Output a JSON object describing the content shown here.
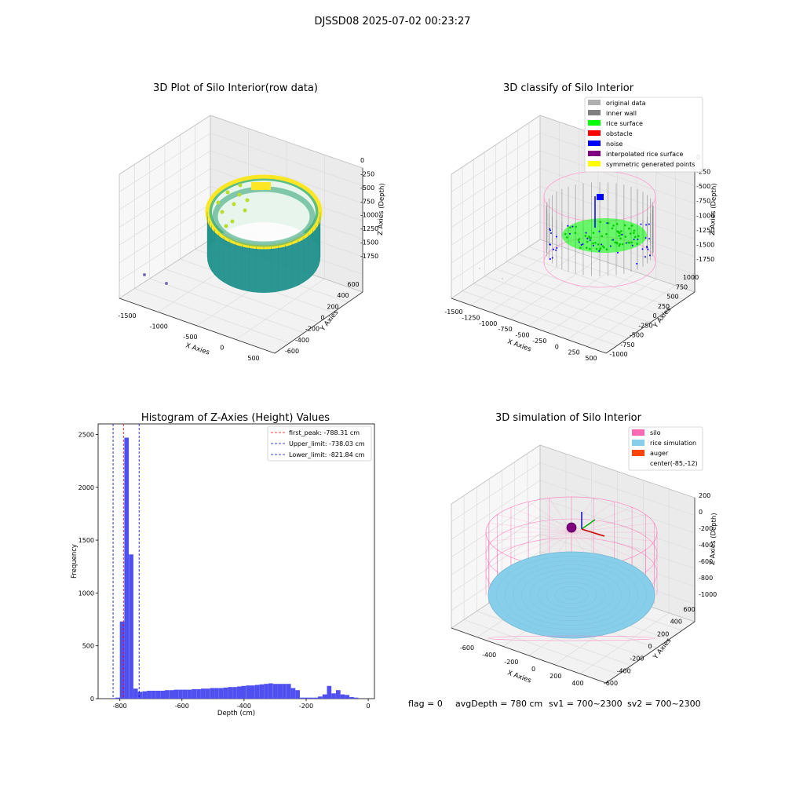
{
  "figure": {
    "title": "DJSSD08 2025-07-02 00:23:27",
    "footer": {
      "flag": "flag = 0",
      "avg_depth": "avgDepth = 780 cm",
      "sv1": "sv1 = 700~2300",
      "sv2": "sv2 = 700~2300"
    }
  },
  "panels": {
    "raw": {
      "title": "3D Plot of Silo Interior(row data)",
      "xlabel": "X Axies",
      "ylabel": "Y Axies",
      "zlabel": "Z Axies (Depth)",
      "x_ticks": [
        "-1500",
        "-1000",
        "-500",
        "0",
        "500"
      ],
      "y_ticks": [
        "-600",
        "-400",
        "-200",
        "0",
        "200",
        "400",
        "600"
      ],
      "z_ticks": [
        "0",
        "-250",
        "-500",
        "-750",
        "-1000",
        "-1250",
        "-1500",
        "-1750"
      ],
      "colors": {
        "low": "#21918c",
        "high": "#fde725",
        "outlier": "#7b6fb5"
      }
    },
    "classify": {
      "title": "3D classify of Silo Interior",
      "xlabel": "X Axies",
      "ylabel": "Y Axies",
      "zlabel": "Z Axies (Depth)",
      "x_ticks": [
        "-1500",
        "-1250",
        "-1000",
        "-750",
        "-500",
        "-250",
        "0",
        "250",
        "500"
      ],
      "y_ticks": [
        "-1000",
        "-750",
        "-500",
        "-250",
        "0",
        "250",
        "500",
        "750",
        "1000"
      ],
      "z_ticks": [
        "0",
        "-250",
        "-500",
        "-750",
        "-1000",
        "-1250",
        "-1500",
        "-1750"
      ],
      "legend": [
        {
          "label": "original data",
          "color": "#b0b0b0"
        },
        {
          "label": "inner wall",
          "color": "#808080"
        },
        {
          "label": "rice surface",
          "color": "#00ff00"
        },
        {
          "label": "obstacle",
          "color": "#ff0000"
        },
        {
          "label": "noise",
          "color": "#0000ff"
        },
        {
          "label": "interpolated rice surface",
          "color": "#800080"
        },
        {
          "label": "symmetric generated points",
          "color": "#ffff00"
        }
      ]
    },
    "simulation": {
      "title": "3D simulation of Silo Interior",
      "xlabel": "X Axies",
      "ylabel": "Y Axies",
      "zlabel": "Z Axies (Depth)",
      "x_ticks": [
        "-600",
        "-400",
        "-200",
        "0",
        "200",
        "400"
      ],
      "y_ticks": [
        "-600",
        "-400",
        "-200",
        "0",
        "200",
        "400",
        "600"
      ],
      "z_ticks": [
        "200",
        "0",
        "-200",
        "-400",
        "-600",
        "-800",
        "-1000"
      ],
      "legend": [
        {
          "label": "silo",
          "color": "#ff69b4"
        },
        {
          "label": "rice simulation",
          "color": "#87ceeb"
        },
        {
          "label": "auger",
          "color": "#ff4500"
        },
        {
          "label": "center(-85,-12)",
          "color": ""
        }
      ]
    }
  },
  "chart_data": {
    "type": "bar",
    "title": "Histogram of Z-Axies (Height) Values",
    "xlabel": "Depth (cm)",
    "ylabel": "Frequency",
    "xlim": [
      -870,
      20
    ],
    "ylim": [
      0,
      2600
    ],
    "x_ticks": [
      -800,
      -600,
      -400,
      -200,
      0
    ],
    "y_ticks": [
      0,
      500,
      1000,
      1500,
      2000,
      2500
    ],
    "bar_width": 14.5,
    "bar_color": "#5050f0",
    "bins": [
      {
        "x": -829,
        "value": 5
      },
      {
        "x": -814.5,
        "value": 10
      },
      {
        "x": -800,
        "value": 730
      },
      {
        "x": -785.5,
        "value": 2470
      },
      {
        "x": -771,
        "value": 1365
      },
      {
        "x": -756.5,
        "value": 95
      },
      {
        "x": -742,
        "value": 65
      },
      {
        "x": -727.5,
        "value": 70
      },
      {
        "x": -713,
        "value": 75
      },
      {
        "x": -698.5,
        "value": 75
      },
      {
        "x": -684,
        "value": 75
      },
      {
        "x": -669.5,
        "value": 75
      },
      {
        "x": -655,
        "value": 80
      },
      {
        "x": -640.5,
        "value": 80
      },
      {
        "x": -626,
        "value": 85
      },
      {
        "x": -611.5,
        "value": 85
      },
      {
        "x": -597,
        "value": 85
      },
      {
        "x": -582.5,
        "value": 85
      },
      {
        "x": -568,
        "value": 90
      },
      {
        "x": -553.5,
        "value": 90
      },
      {
        "x": -539,
        "value": 95
      },
      {
        "x": -524.5,
        "value": 95
      },
      {
        "x": -510,
        "value": 100
      },
      {
        "x": -495.5,
        "value": 100
      },
      {
        "x": -481,
        "value": 100
      },
      {
        "x": -466.5,
        "value": 105
      },
      {
        "x": -452,
        "value": 110
      },
      {
        "x": -437.5,
        "value": 110
      },
      {
        "x": -423,
        "value": 115
      },
      {
        "x": -408.5,
        "value": 120
      },
      {
        "x": -394,
        "value": 125
      },
      {
        "x": -379.5,
        "value": 125
      },
      {
        "x": -365,
        "value": 130
      },
      {
        "x": -350.5,
        "value": 135
      },
      {
        "x": -336,
        "value": 140
      },
      {
        "x": -321.5,
        "value": 145
      },
      {
        "x": -307,
        "value": 140
      },
      {
        "x": -292.5,
        "value": 140
      },
      {
        "x": -278,
        "value": 140
      },
      {
        "x": -263.5,
        "value": 140
      },
      {
        "x": -249,
        "value": 100
      },
      {
        "x": -234.5,
        "value": 80
      },
      {
        "x": -220,
        "value": 10
      },
      {
        "x": -205.5,
        "value": 10
      },
      {
        "x": -191,
        "value": 10
      },
      {
        "x": -176.5,
        "value": 10
      },
      {
        "x": -162,
        "value": 20
      },
      {
        "x": -147.5,
        "value": 40
      },
      {
        "x": -133,
        "value": 120
      },
      {
        "x": -118.5,
        "value": 50
      },
      {
        "x": -104,
        "value": 80
      },
      {
        "x": -89.5,
        "value": 40
      },
      {
        "x": -75,
        "value": 35
      },
      {
        "x": -60.5,
        "value": 15
      },
      {
        "x": -46,
        "value": 10
      }
    ],
    "lines": [
      {
        "name": "first_peak: -788.31 cm",
        "x": -788.31,
        "color": "#ff0000"
      },
      {
        "name": "Upper_limit: -738.03 cm",
        "x": -738.03,
        "color": "#0000cc"
      },
      {
        "name": "Lower_limit: -821.84 cm",
        "x": -821.84,
        "color": "#0000cc"
      }
    ],
    "legend_position": "top-right",
    "grid": false
  }
}
